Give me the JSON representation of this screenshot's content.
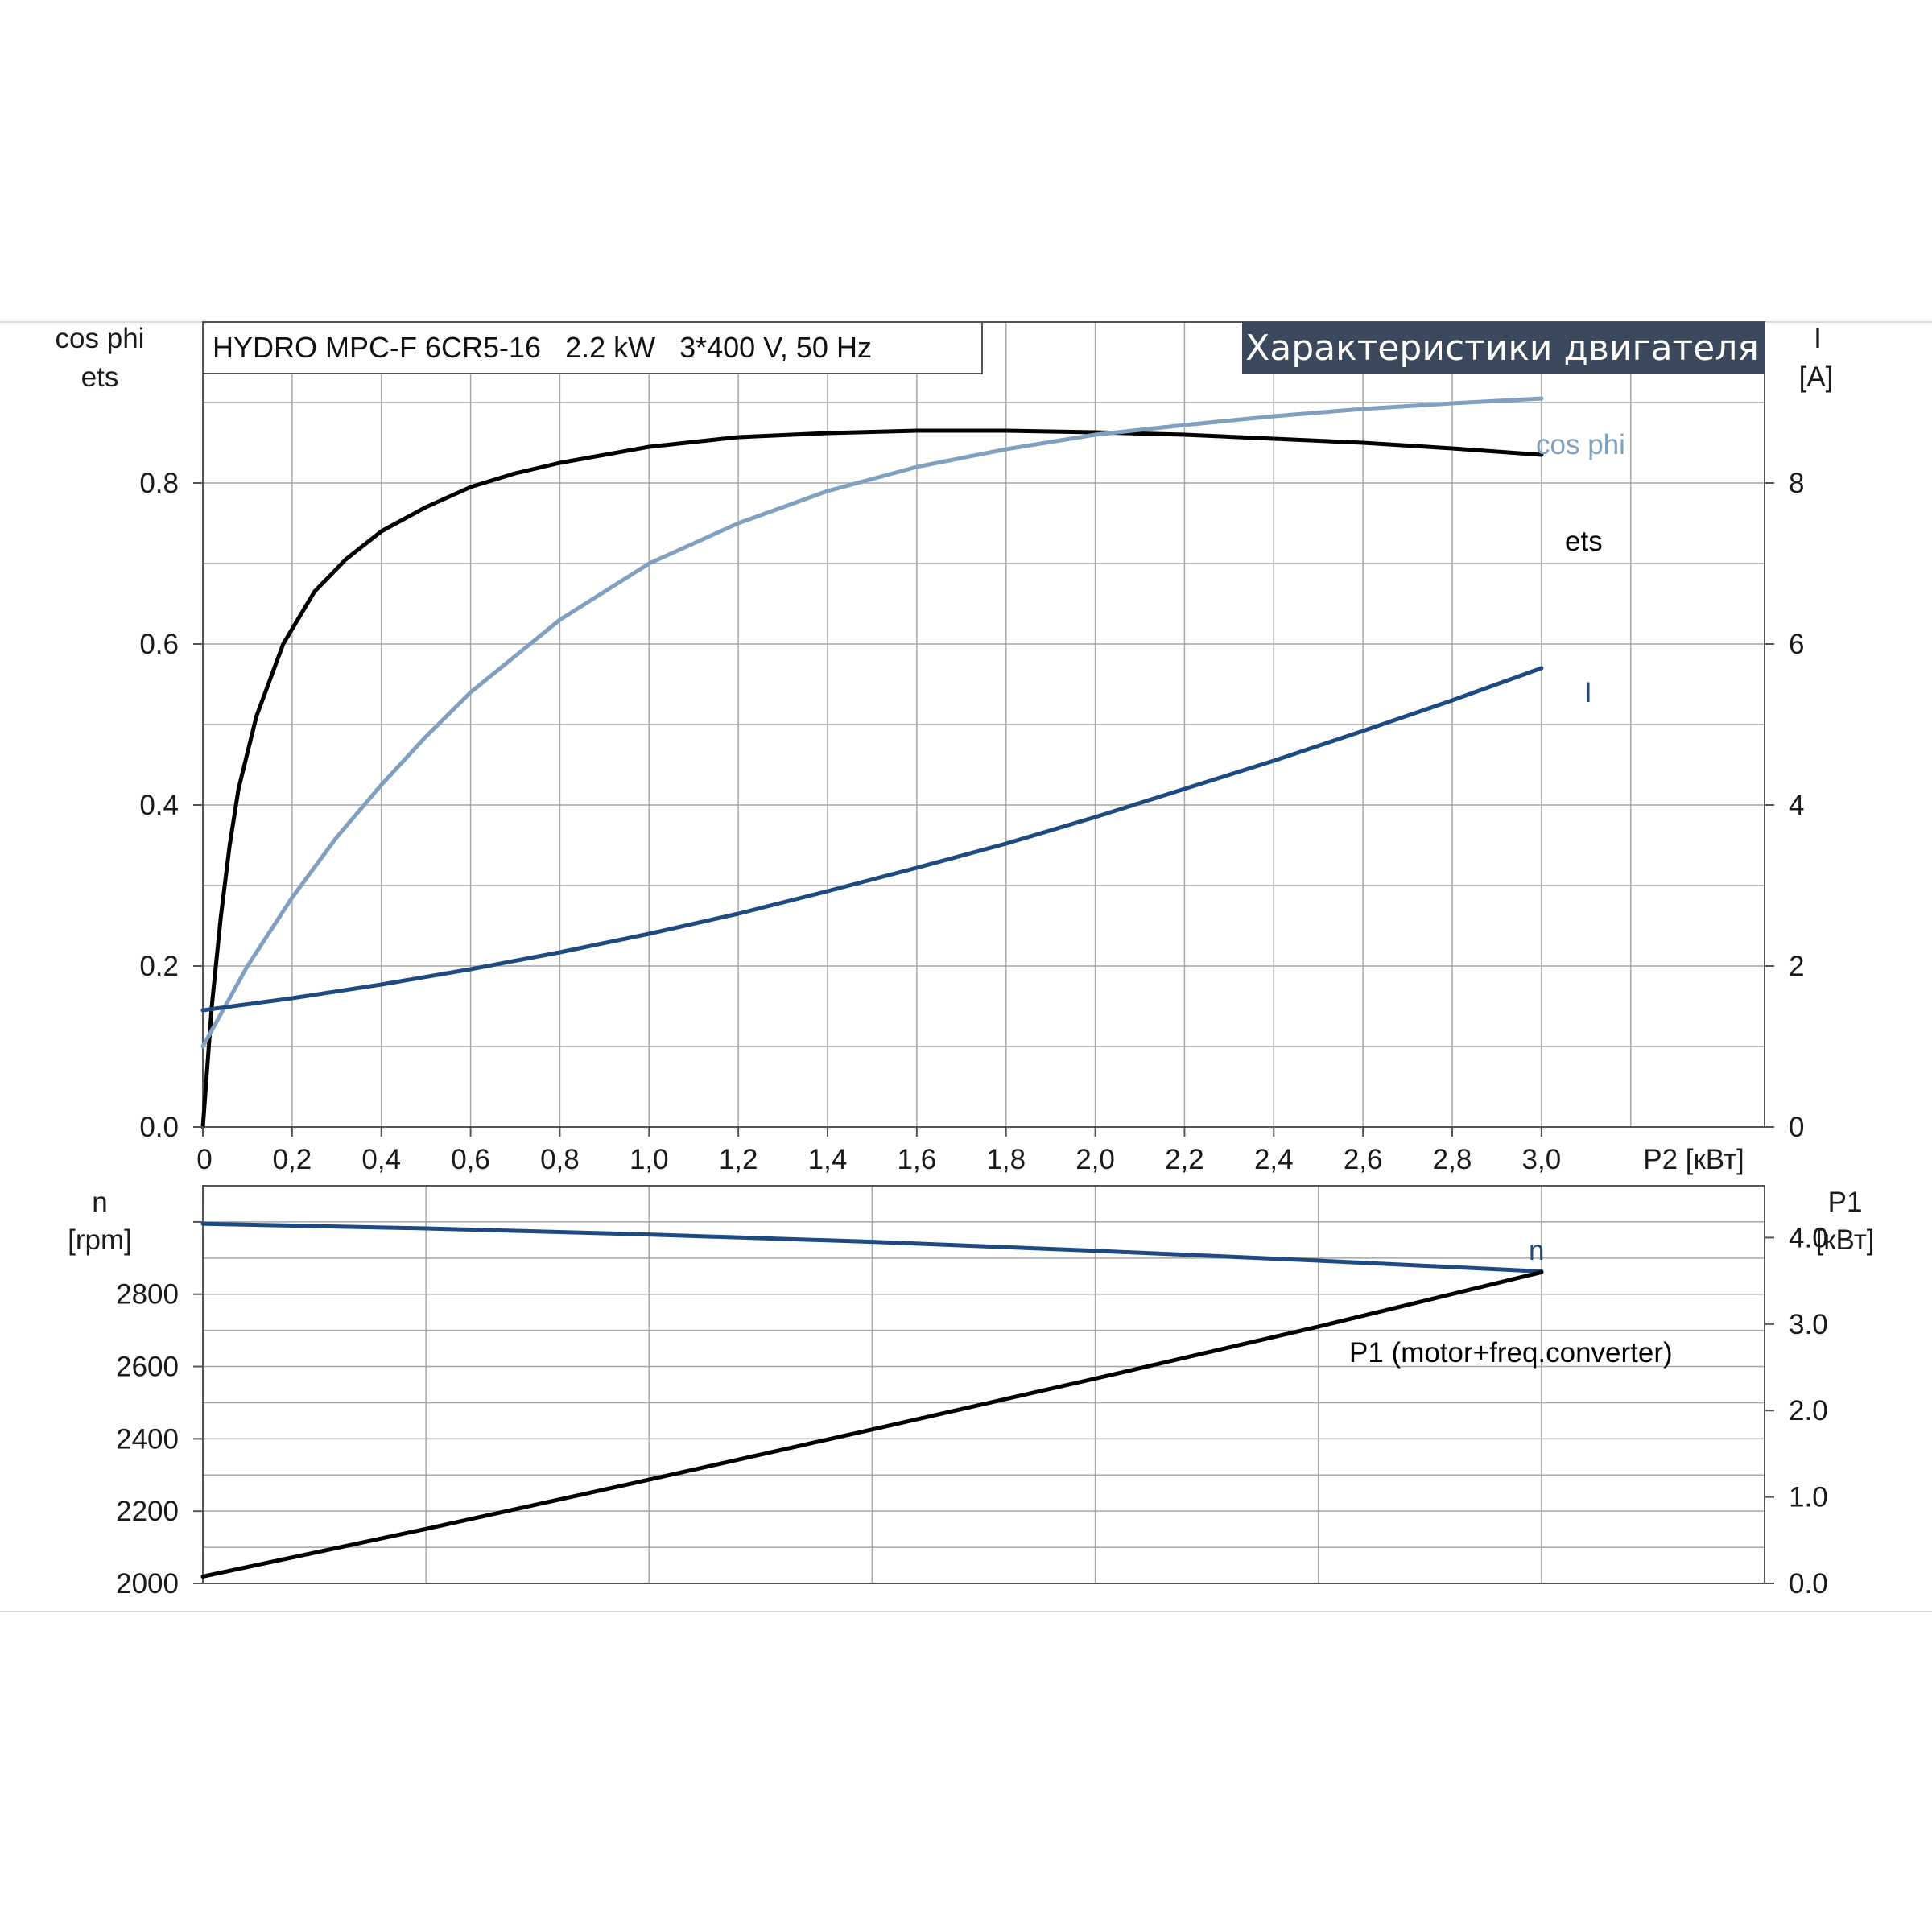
{
  "header": {
    "model": "HYDRO MPC-F 6CR5-16   2.2 kW   3*400 V, 50 Hz",
    "badge": "Характеристики двигателя"
  },
  "colors": {
    "ets": "#000000",
    "cos_phi": "#7fa0c0",
    "current": "#1e4a82",
    "speed": "#1e4a82",
    "p1": "#000000",
    "grid": "#a6a6a6",
    "badge_bg": "#3a4a5c"
  },
  "chart_data": [
    {
      "type": "line",
      "name": "top-panel",
      "x_axis": {
        "label": "P2 [кВт]",
        "range": [
          0,
          3.5
        ],
        "ticks": [
          "0",
          "0,2",
          "0,4",
          "0,6",
          "0,8",
          "1,0",
          "1,2",
          "1,4",
          "1,6",
          "1,8",
          "2,0",
          "2,2",
          "2,4",
          "2,6",
          "2,8",
          "3,0"
        ]
      },
      "y_left": {
        "label_lines": [
          "cos phi",
          "ets"
        ],
        "range": [
          0,
          1.0
        ],
        "ticks": [
          "0.0",
          "0.2",
          "0.4",
          "0.6",
          "0.8"
        ]
      },
      "y_right": {
        "label_lines": [
          "I",
          "[A]"
        ],
        "range": [
          0,
          10
        ],
        "ticks": [
          "0",
          "2",
          "4",
          "6",
          "8"
        ]
      },
      "grid": true,
      "series": [
        {
          "name": "ets",
          "axis": "left",
          "color": "#000000",
          "x": [
            0,
            0.02,
            0.04,
            0.06,
            0.08,
            0.12,
            0.18,
            0.25,
            0.32,
            0.4,
            0.5,
            0.6,
            0.7,
            0.8,
            1.0,
            1.2,
            1.4,
            1.6,
            1.8,
            2.0,
            2.2,
            2.4,
            2.6,
            2.8,
            3.0
          ],
          "y": [
            0,
            0.15,
            0.26,
            0.35,
            0.42,
            0.51,
            0.6,
            0.665,
            0.705,
            0.74,
            0.77,
            0.795,
            0.812,
            0.825,
            0.845,
            0.857,
            0.862,
            0.865,
            0.865,
            0.863,
            0.86,
            0.855,
            0.85,
            0.843,
            0.835
          ]
        },
        {
          "name": "cos phi",
          "axis": "left",
          "color": "#7fa0c0",
          "x": [
            0,
            0.1,
            0.2,
            0.3,
            0.4,
            0.5,
            0.6,
            0.8,
            1.0,
            1.2,
            1.4,
            1.6,
            1.8,
            2.0,
            2.2,
            2.4,
            2.6,
            2.8,
            3.0
          ],
          "y": [
            0.1,
            0.2,
            0.285,
            0.36,
            0.425,
            0.485,
            0.54,
            0.63,
            0.7,
            0.75,
            0.79,
            0.82,
            0.842,
            0.86,
            0.872,
            0.883,
            0.892,
            0.899,
            0.905
          ]
        },
        {
          "name": "I",
          "axis": "right",
          "color": "#1e4a82",
          "x": [
            0,
            0.2,
            0.4,
            0.6,
            0.8,
            1.0,
            1.2,
            1.4,
            1.6,
            1.8,
            2.0,
            2.2,
            2.4,
            2.6,
            2.8,
            3.0
          ],
          "y": [
            1.45,
            1.6,
            1.77,
            1.96,
            2.17,
            2.4,
            2.65,
            2.93,
            3.22,
            3.52,
            3.85,
            4.2,
            4.55,
            4.92,
            5.3,
            5.7
          ]
        }
      ]
    },
    {
      "type": "line",
      "name": "bottom-panel",
      "x_axis": {
        "range": [
          0,
          3.5
        ]
      },
      "y_left": {
        "label_lines": [
          "n",
          "[rpm]"
        ],
        "range": [
          2000,
          3100
        ],
        "ticks": [
          "2000",
          "2200",
          "2400",
          "2600",
          "2800"
        ]
      },
      "y_right": {
        "label_lines": [
          "P1",
          "[кВт]"
        ],
        "range": [
          0,
          4.6
        ],
        "ticks": [
          "0.0",
          "1.0",
          "2.0",
          "3.0",
          "4.0"
        ]
      },
      "grid": true,
      "series": [
        {
          "name": "n",
          "axis": "left",
          "color": "#1e4a82",
          "x": [
            0,
            0.5,
            1.0,
            1.5,
            2.0,
            2.5,
            3.0
          ],
          "y": [
            2995,
            2982,
            2965,
            2945,
            2920,
            2893,
            2863
          ]
        },
        {
          "name": "P1 (motor+freq.converter)",
          "axis": "right",
          "color": "#000000",
          "x": [
            0,
            0.5,
            1.0,
            1.5,
            2.0,
            2.5,
            3.0
          ],
          "y": [
            0.08,
            0.63,
            1.2,
            1.78,
            2.37,
            2.97,
            3.6
          ]
        }
      ]
    }
  ]
}
